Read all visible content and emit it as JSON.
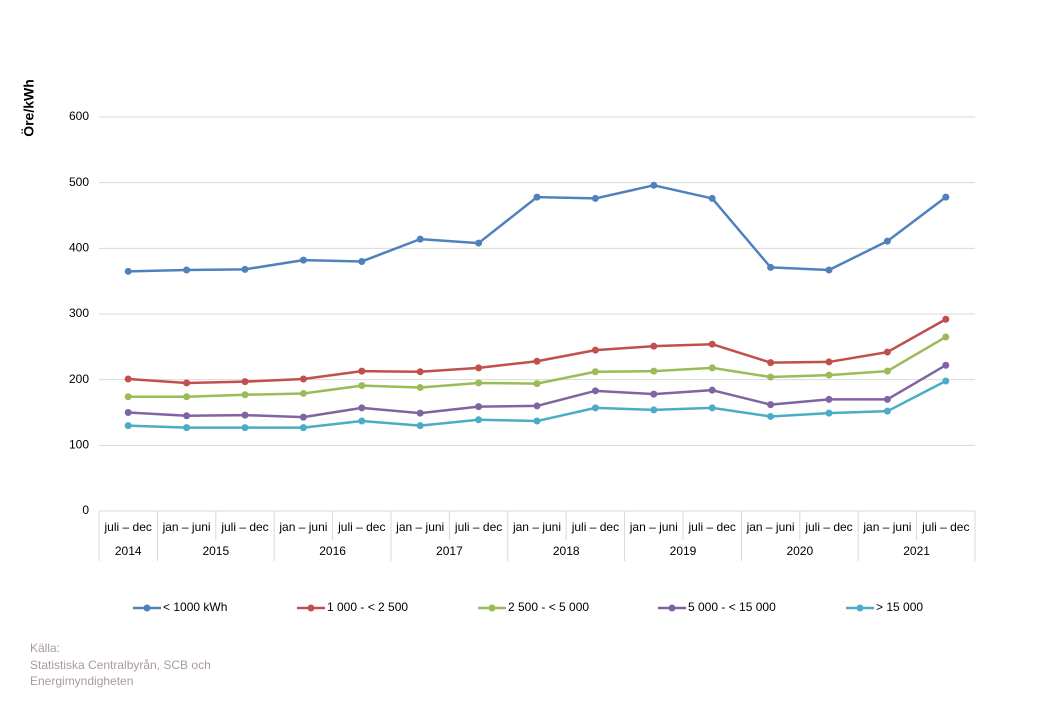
{
  "chart_data": {
    "type": "line",
    "y_label": "Öre/kWh",
    "category_groups": [
      {
        "label": "2014",
        "categories": [
          "juli – dec"
        ]
      },
      {
        "label": "2015",
        "categories": [
          "jan – juni",
          "juli – dec"
        ]
      },
      {
        "label": "2016",
        "categories": [
          "jan – juni",
          "juli – dec"
        ]
      },
      {
        "label": "2017",
        "categories": [
          "jan – juni",
          "juli – dec"
        ]
      },
      {
        "label": "2018",
        "categories": [
          "jan – juni",
          "juli – dec"
        ]
      },
      {
        "label": "2019",
        "categories": [
          "jan – juni",
          "juli – dec"
        ]
      },
      {
        "label": "2020",
        "categories": [
          "jan – juni",
          "juli – dec"
        ]
      },
      {
        "label": "2021",
        "categories": [
          "jan – juni",
          "juli – dec"
        ]
      }
    ],
    "series": [
      {
        "name": "< 1000 kWh",
        "color": "#4f81bd",
        "values": [
          365,
          367,
          368,
          382,
          380,
          414,
          408,
          478,
          476,
          496,
          476,
          371,
          367,
          411,
          478
        ]
      },
      {
        "name": "1 000 - < 2 500",
        "color": "#c0504d",
        "values": [
          201,
          195,
          197,
          201,
          213,
          212,
          218,
          228,
          245,
          251,
          254,
          226,
          227,
          242,
          292
        ]
      },
      {
        "name": "2 500 - < 5 000",
        "color": "#9bbb59",
        "values": [
          174,
          174,
          177,
          179,
          191,
          188,
          195,
          194,
          212,
          213,
          218,
          204,
          207,
          213,
          265
        ]
      },
      {
        "name": "5 000 - < 15 000",
        "color": "#8064a2",
        "values": [
          150,
          145,
          146,
          143,
          157,
          149,
          159,
          160,
          183,
          178,
          184,
          162,
          170,
          170,
          222
        ]
      },
      {
        "name": "> 15 000",
        "color": "#4bacc6",
        "values": [
          130,
          127,
          127,
          127,
          137,
          130,
          139,
          137,
          157,
          154,
          157,
          144,
          149,
          152,
          198
        ]
      }
    ],
    "ylim": [
      0,
      600
    ],
    "yticks": [
      0,
      100,
      200,
      300,
      400,
      500,
      600
    ],
    "grid": true,
    "legend": "bottom",
    "source": [
      "Källa:",
      "Statistiska Centralbyrån, SCB och",
      "Energimyndigheten"
    ]
  }
}
